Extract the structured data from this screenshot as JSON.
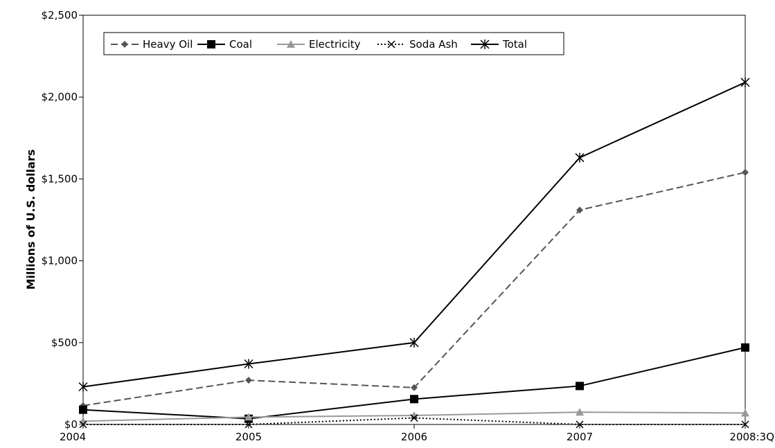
{
  "chart_data": {
    "type": "line",
    "title": "",
    "xlabel": "",
    "ylabel": "Millions of U.S. dollars",
    "categories": [
      "2004",
      "2005",
      "2006",
      "2007",
      "2008:3Q"
    ],
    "ylim": [
      0,
      2500
    ],
    "yticks": [
      0,
      500,
      1000,
      1500,
      2000,
      2500
    ],
    "ytick_labels": [
      "$0",
      "$500",
      "$1,000",
      "$1,500",
      "$2,000",
      "$2,500"
    ],
    "grid": false,
    "legend_position": "top-left",
    "series": [
      {
        "name": "Heavy Oil",
        "values": [
          115,
          270,
          225,
          1310,
          1540
        ],
        "color": "#555555",
        "line": "dashed",
        "marker": "diamond"
      },
      {
        "name": "Coal",
        "values": [
          90,
          35,
          155,
          235,
          470
        ],
        "color": "#000000",
        "line": "solid",
        "marker": "square"
      },
      {
        "name": "Electricity",
        "values": [
          20,
          45,
          55,
          75,
          70
        ],
        "color": "#999999",
        "line": "solid",
        "marker": "triangle"
      },
      {
        "name": "Soda Ash",
        "values": [
          0,
          0,
          40,
          0,
          0
        ],
        "color": "#000000",
        "line": "dotted",
        "marker": "x"
      },
      {
        "name": "Total",
        "values": [
          230,
          370,
          500,
          1630,
          2090
        ],
        "color": "#000000",
        "line": "solid",
        "marker": "star"
      }
    ]
  }
}
